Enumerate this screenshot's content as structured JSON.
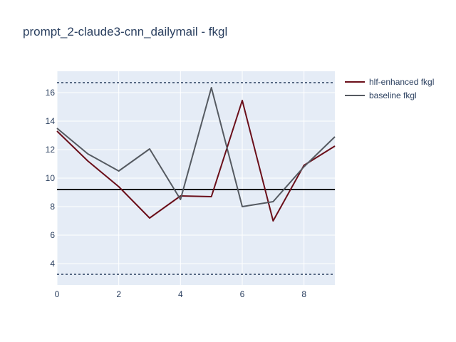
{
  "chart_data": {
    "type": "line",
    "title": "prompt_2-claude3-cnn_dailymail - fkgl",
    "xlabel": "",
    "ylabel": "",
    "xlim": [
      0,
      9
    ],
    "ylim": [
      2.5,
      17.5
    ],
    "x_ticks": [
      0,
      2,
      4,
      6,
      8
    ],
    "y_ticks": [
      4,
      6,
      8,
      10,
      12,
      14,
      16
    ],
    "x": [
      0,
      1,
      2,
      3,
      4,
      5,
      6,
      7,
      8,
      9
    ],
    "series": [
      {
        "name": "hlf-enhanced fkgl",
        "color": "#6b0f1a",
        "values": [
          13.3,
          11.2,
          9.4,
          7.2,
          8.75,
          8.7,
          15.45,
          7.0,
          10.9,
          12.25
        ]
      },
      {
        "name": "baseline fkgl",
        "color": "#555a61",
        "values": [
          13.5,
          11.7,
          10.5,
          12.05,
          8.5,
          16.35,
          8.0,
          8.35,
          10.8,
          12.9
        ]
      }
    ],
    "reference_lines": [
      {
        "y": 9.2,
        "style": "solid",
        "color": "#000000"
      },
      {
        "y": 16.7,
        "style": "dotted",
        "color": "#2a3f5f"
      },
      {
        "y": 3.25,
        "style": "dotted",
        "color": "#2a3f5f"
      }
    ],
    "grid": true,
    "legend_position": "top-right",
    "colors": {
      "plot_bg": "#e5ecf6",
      "grid": "#ffffff",
      "text": "#2a3f5f"
    }
  }
}
